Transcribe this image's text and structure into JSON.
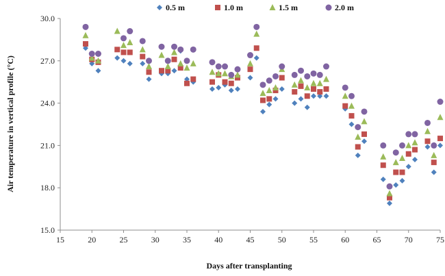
{
  "chart_data": {
    "type": "scatter",
    "xlabel": "Days after transplanting",
    "ylabel": "Air temperature in vertical profile (°C)",
    "xlim": [
      15,
      75
    ],
    "ylim": [
      15.0,
      30.0
    ],
    "xticks": [
      "15",
      "20",
      "25",
      "30",
      "35",
      "40",
      "45",
      "50",
      "55",
      "60",
      "65",
      "70",
      "75"
    ],
    "yticks": [
      "15.0",
      "18.0",
      "21.0",
      "24.0",
      "27.0",
      "30.0"
    ],
    "legend_position": "top",
    "grid": false,
    "series": [
      {
        "name": "0.5 m",
        "marker": "diamond",
        "color": "#4f81bd",
        "points": [
          [
            19,
            27.9
          ],
          [
            20,
            26.8
          ],
          [
            21,
            26.3
          ],
          [
            24,
            27.2
          ],
          [
            25,
            27.0
          ],
          [
            26,
            26.8
          ],
          [
            28,
            26.8
          ],
          [
            29,
            25.7
          ],
          [
            31,
            26.1
          ],
          [
            32,
            26.1
          ],
          [
            33,
            26.3
          ],
          [
            34,
            27.7
          ],
          [
            35,
            25.7
          ],
          [
            36,
            25.5
          ],
          [
            39,
            25.0
          ],
          [
            40,
            25.1
          ],
          [
            41,
            25.3
          ],
          [
            42,
            24.9
          ],
          [
            43,
            25.0
          ],
          [
            45,
            25.8
          ],
          [
            46,
            27.2
          ],
          [
            47,
            23.4
          ],
          [
            48,
            23.9
          ],
          [
            49,
            24.3
          ],
          [
            50,
            25.0
          ],
          [
            52,
            24.0
          ],
          [
            53,
            24.3
          ],
          [
            54,
            23.7
          ],
          [
            55,
            24.5
          ],
          [
            56,
            24.5
          ],
          [
            57,
            24.5
          ],
          [
            60,
            23.6
          ],
          [
            61,
            22.5
          ],
          [
            62,
            20.3
          ],
          [
            63,
            21.3
          ],
          [
            66,
            18.6
          ],
          [
            67,
            16.9
          ],
          [
            68,
            18.2
          ],
          [
            69,
            18.5
          ],
          [
            70,
            19.5
          ],
          [
            71,
            20.0
          ],
          [
            73,
            20.9
          ],
          [
            74,
            19.1
          ],
          [
            75,
            21.0
          ]
        ]
      },
      {
        "name": "1.0 m",
        "marker": "square",
        "color": "#c0504d",
        "points": [
          [
            19,
            28.2
          ],
          [
            20,
            27.1
          ],
          [
            21,
            26.9
          ],
          [
            24,
            27.8
          ],
          [
            25,
            27.6
          ],
          [
            26,
            27.6
          ],
          [
            28,
            27.3
          ],
          [
            29,
            26.2
          ],
          [
            31,
            26.3
          ],
          [
            32,
            26.3
          ],
          [
            33,
            27.1
          ],
          [
            34,
            26.5
          ],
          [
            35,
            25.4
          ],
          [
            36,
            25.7
          ],
          [
            39,
            25.5
          ],
          [
            40,
            26.0
          ],
          [
            41,
            25.5
          ],
          [
            42,
            25.4
          ],
          [
            43,
            25.8
          ],
          [
            45,
            26.4
          ],
          [
            46,
            27.9
          ],
          [
            47,
            24.2
          ],
          [
            48,
            24.3
          ],
          [
            49,
            24.9
          ],
          [
            50,
            25.8
          ],
          [
            52,
            24.8
          ],
          [
            53,
            25.2
          ],
          [
            54,
            24.5
          ],
          [
            55,
            25.0
          ],
          [
            56,
            24.8
          ],
          [
            57,
            25.0
          ],
          [
            60,
            23.8
          ],
          [
            61,
            23.1
          ],
          [
            62,
            20.9
          ],
          [
            63,
            21.8
          ],
          [
            66,
            19.6
          ],
          [
            67,
            17.3
          ],
          [
            68,
            19.1
          ],
          [
            69,
            19.1
          ],
          [
            70,
            20.4
          ],
          [
            71,
            20.7
          ],
          [
            73,
            21.3
          ],
          [
            74,
            19.8
          ],
          [
            75,
            21.5
          ]
        ]
      },
      {
        "name": "1.5 m",
        "marker": "triangle",
        "color": "#9bbb59",
        "points": [
          [
            19,
            28.8
          ],
          [
            20,
            27.2
          ],
          [
            21,
            27.0
          ],
          [
            24,
            29.1
          ],
          [
            25,
            28.1
          ],
          [
            26,
            28.3
          ],
          [
            28,
            27.8
          ],
          [
            29,
            26.6
          ],
          [
            31,
            27.4
          ],
          [
            32,
            26.6
          ],
          [
            33,
            27.6
          ],
          [
            34,
            26.8
          ],
          [
            35,
            26.5
          ],
          [
            36,
            26.8
          ],
          [
            39,
            26.2
          ],
          [
            40,
            26.1
          ],
          [
            41,
            26.1
          ],
          [
            42,
            25.9
          ],
          [
            43,
            26.0
          ],
          [
            45,
            26.8
          ],
          [
            46,
            28.9
          ],
          [
            47,
            24.7
          ],
          [
            48,
            24.9
          ],
          [
            49,
            25.1
          ],
          [
            50,
            26.4
          ],
          [
            52,
            25.3
          ],
          [
            53,
            25.6
          ],
          [
            54,
            25.1
          ],
          [
            55,
            25.4
          ],
          [
            56,
            25.4
          ],
          [
            57,
            25.7
          ],
          [
            60,
            24.5
          ],
          [
            61,
            23.8
          ],
          [
            62,
            21.6
          ],
          [
            63,
            22.7
          ],
          [
            66,
            20.2
          ],
          [
            67,
            17.6
          ],
          [
            68,
            19.8
          ],
          [
            69,
            20.1
          ],
          [
            70,
            21.0
          ],
          [
            71,
            21.2
          ],
          [
            73,
            22.0
          ],
          [
            74,
            20.3
          ],
          [
            75,
            23.0
          ]
        ]
      },
      {
        "name": "2.0 m",
        "marker": "circle",
        "color": "#8064a2",
        "points": [
          [
            19,
            29.4
          ],
          [
            20,
            27.5
          ],
          [
            21,
            27.5
          ],
          [
            25,
            28.6
          ],
          [
            26,
            29.1
          ],
          [
            28,
            28.4
          ],
          [
            29,
            27.0
          ],
          [
            31,
            28.0
          ],
          [
            32,
            27.0
          ],
          [
            33,
            28.0
          ],
          [
            34,
            27.8
          ],
          [
            35,
            27.0
          ],
          [
            36,
            27.8
          ],
          [
            39,
            26.9
          ],
          [
            40,
            26.6
          ],
          [
            41,
            26.6
          ],
          [
            42,
            26.0
          ],
          [
            43,
            26.4
          ],
          [
            45,
            27.4
          ],
          [
            46,
            29.4
          ],
          [
            47,
            25.3
          ],
          [
            48,
            25.6
          ],
          [
            49,
            25.9
          ],
          [
            50,
            26.6
          ],
          [
            52,
            26.0
          ],
          [
            53,
            26.3
          ],
          [
            54,
            25.9
          ],
          [
            55,
            26.1
          ],
          [
            56,
            26.0
          ],
          [
            57,
            26.6
          ],
          [
            60,
            25.1
          ],
          [
            61,
            24.5
          ],
          [
            62,
            22.3
          ],
          [
            63,
            23.4
          ],
          [
            66,
            21.0
          ],
          [
            67,
            18.1
          ],
          [
            68,
            20.5
          ],
          [
            69,
            21.0
          ],
          [
            70,
            21.8
          ],
          [
            71,
            21.8
          ],
          [
            73,
            22.6
          ],
          [
            74,
            21.0
          ],
          [
            75,
            24.1
          ]
        ]
      }
    ]
  }
}
